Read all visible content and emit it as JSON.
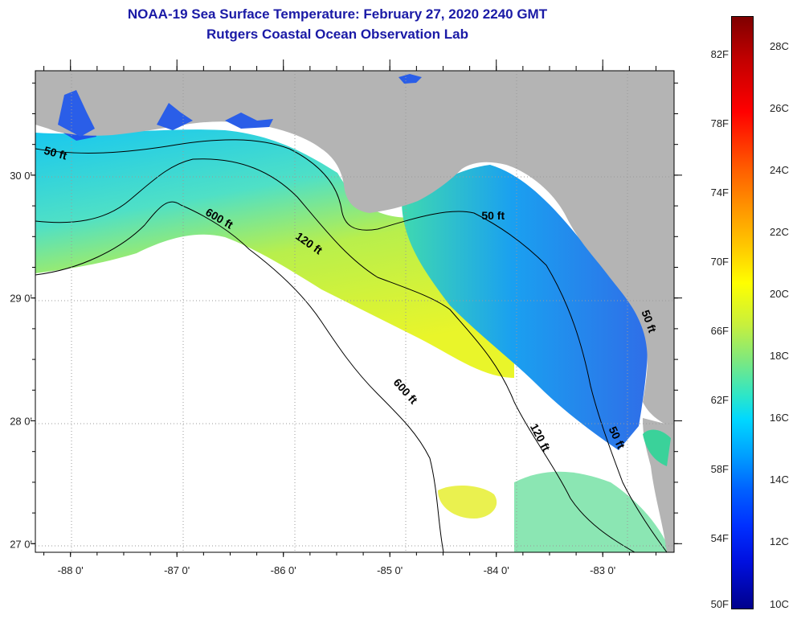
{
  "title": {
    "line1": "NOAA-19 Sea Surface Temperature:  February 27, 2020 2240 GMT",
    "line2": "Rutgers Coastal Ocean Observation Lab"
  },
  "map": {
    "lon_range": [
      -88.33,
      -82.33
    ],
    "lat_range": [
      26.93,
      30.85
    ],
    "lon_ticks": [
      -88,
      -87,
      -86,
      -85,
      -84,
      -83
    ],
    "lat_ticks": [
      30,
      29,
      28,
      27
    ],
    "lon_labels": [
      "-88 0'",
      "-87 0'",
      "-86 0'",
      "-85 0'",
      "-84 0'",
      "-83 0'"
    ],
    "lat_labels": [
      "30 0'",
      "29 0'",
      "28 0'",
      "27 0'"
    ],
    "contour_labels": [
      {
        "text": "50 ft",
        "lon": -88.15,
        "lat": 30.15,
        "angle": 15
      },
      {
        "text": "600 ft",
        "lon": -86.62,
        "lat": 29.62,
        "angle": 30
      },
      {
        "text": "120 ft",
        "lon": -85.78,
        "lat": 29.42,
        "angle": 35
      },
      {
        "text": "50 ft",
        "lon": -84.03,
        "lat": 29.64,
        "angle": 0
      },
      {
        "text": "600 ft",
        "lon": -84.88,
        "lat": 28.22,
        "angle": 48
      },
      {
        "text": "120 ft",
        "lon": -83.62,
        "lat": 27.85,
        "angle": 62
      },
      {
        "text": "50 ft",
        "lon": -82.9,
        "lat": 27.85,
        "angle": 65
      },
      {
        "text": "50 ft",
        "lon": -82.6,
        "lat": 28.8,
        "angle": 70
      }
    ],
    "colors": {
      "land": "#b4b4b4",
      "ocean_nodata": "#ffffff",
      "frame": "#000000",
      "contour": "#000000"
    }
  },
  "colorbar": {
    "f_labels": [
      "82F",
      "78F",
      "74F",
      "70F",
      "66F",
      "62F",
      "58F",
      "54F",
      "50F"
    ],
    "c_labels": [
      "28C",
      "26C",
      "24C",
      "22C",
      "20C",
      "18C",
      "16C",
      "14C",
      "12C",
      "10C"
    ]
  }
}
